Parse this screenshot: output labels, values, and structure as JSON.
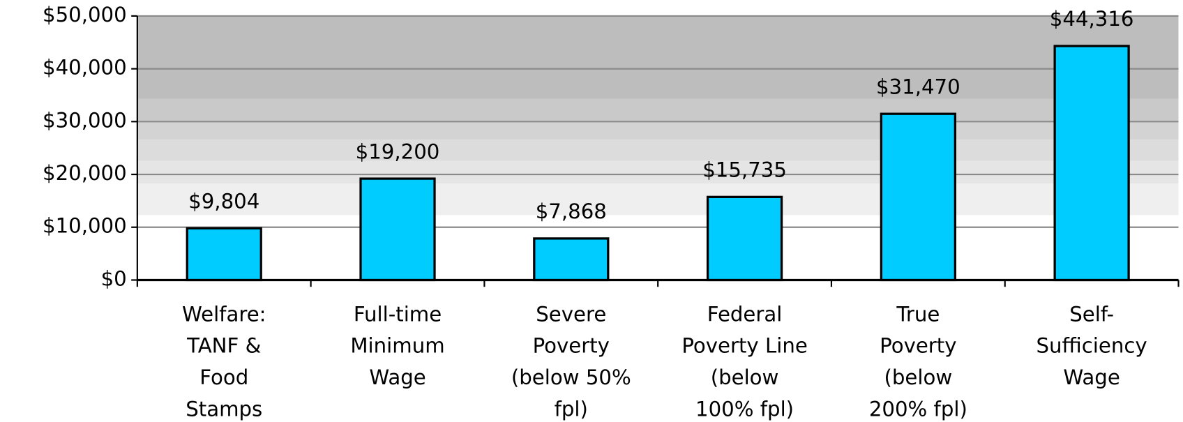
{
  "chart_data": {
    "type": "bar",
    "categories": [
      [
        "Welfare:",
        "TANF &",
        "Food",
        "Stamps"
      ],
      [
        "Full-time",
        "Minimum",
        "Wage"
      ],
      [
        "Severe",
        "Poverty",
        "(below 50%",
        "fpl)"
      ],
      [
        "Federal",
        "Poverty Line",
        "(below",
        "100% fpl)"
      ],
      [
        "True",
        "Poverty",
        "(below",
        "200% fpl)"
      ],
      [
        "Self-",
        "Sufficiency",
        "Wage"
      ]
    ],
    "values": [
      9804,
      19200,
      7868,
      15735,
      31470,
      44316
    ],
    "value_labels": [
      "$9,804",
      "$19,200",
      "$7,868",
      "$15,735",
      "$31,470",
      "$44,316"
    ],
    "color": "#00ccff",
    "ylim": [
      0,
      50000
    ],
    "yticks": [
      {
        "value": 0,
        "label": "$0"
      },
      {
        "value": 10000,
        "label": "$10,000"
      },
      {
        "value": 20000,
        "label": "$20,000"
      },
      {
        "value": 30000,
        "label": "$30,000"
      },
      {
        "value": 40000,
        "label": "$40,000"
      },
      {
        "value": 50000,
        "label": "$50,000"
      }
    ],
    "grid": true
  }
}
